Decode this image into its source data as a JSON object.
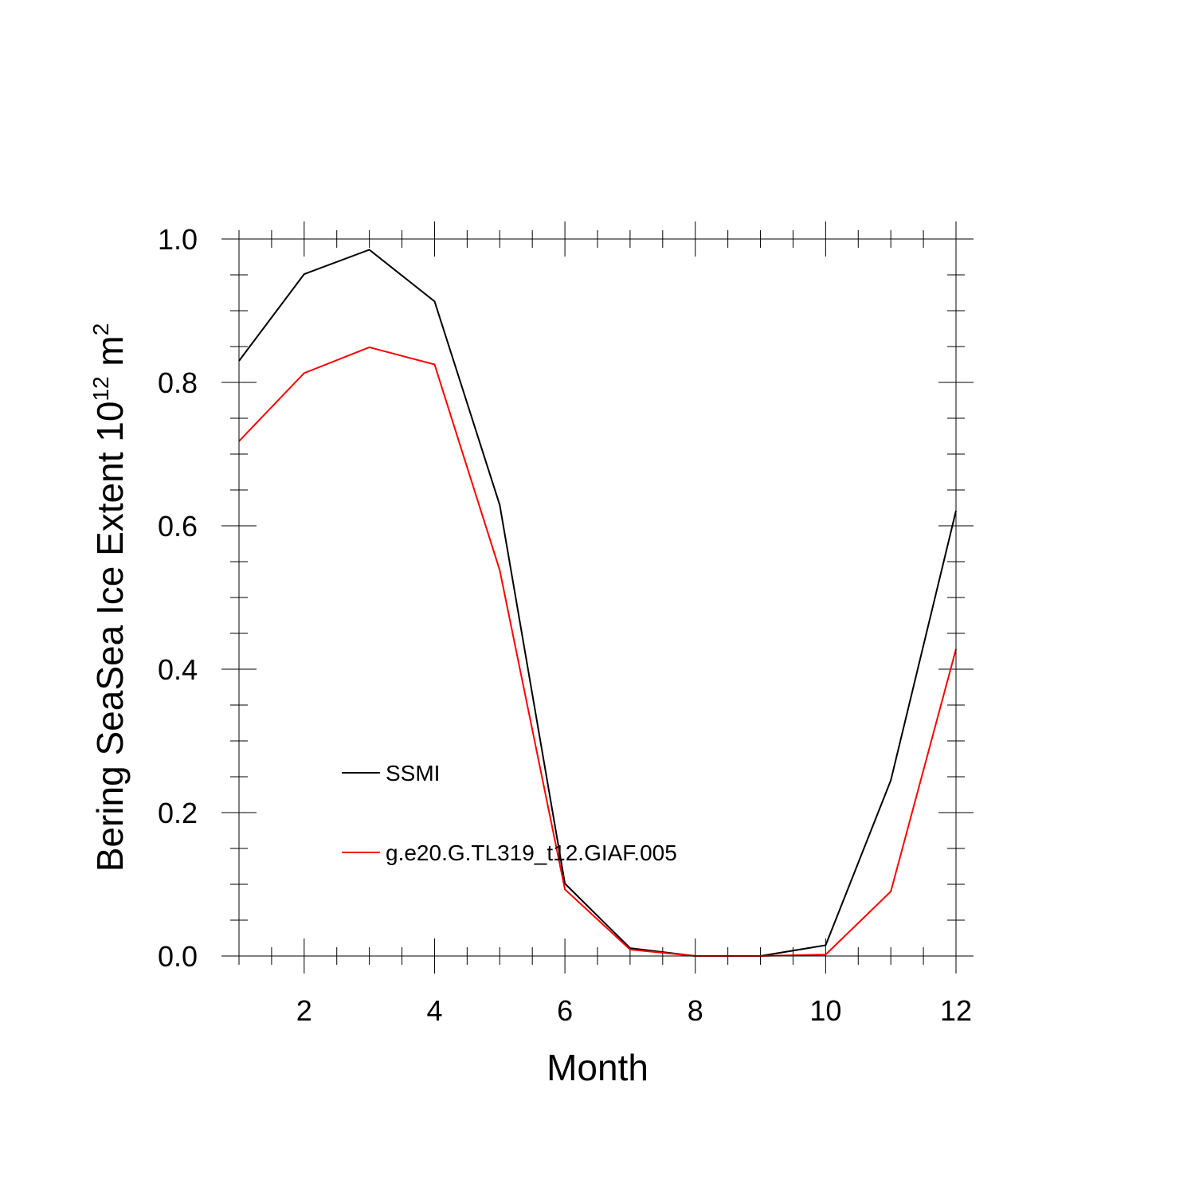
{
  "colors": {
    "background": "#ffffff",
    "axis": "#000000",
    "ssmi": "#000000",
    "model": "#ff0000"
  },
  "chart_data": {
    "type": "line",
    "title": "",
    "xlabel": "Month",
    "ylabel_text": "Bering SeaSea Ice Extent 10",
    "ylabel_exponent": "12",
    "ylabel_unit": " m",
    "ylabel_unit_exponent": "2",
    "xlim": [
      1,
      12
    ],
    "ylim": [
      0.0,
      1.0
    ],
    "x": [
      1,
      2,
      3,
      4,
      5,
      6,
      7,
      8,
      9,
      10,
      11,
      12
    ],
    "x_ticks": [
      2,
      4,
      6,
      8,
      10,
      12
    ],
    "x_tick_labels": [
      "2",
      "4",
      "6",
      "8",
      "10",
      "12"
    ],
    "y_ticks": [
      0.0,
      0.2,
      0.4,
      0.6,
      0.8,
      1.0
    ],
    "y_tick_labels": [
      "0.0",
      "0.2",
      "0.4",
      "0.6",
      "0.8",
      "1.0"
    ],
    "grid": false,
    "legend_position": "lower-left inside",
    "series": [
      {
        "name": "SSMI",
        "color": "#000000",
        "values": [
          0.83,
          0.951,
          0.985,
          0.913,
          0.629,
          0.101,
          0.011,
          0.0,
          0.0,
          0.015,
          0.245,
          0.621
        ]
      },
      {
        "name": "g.e20.G.TL319_t12.GIAF.005",
        "color": "#ff0000",
        "values": [
          0.718,
          0.813,
          0.849,
          0.825,
          0.538,
          0.093,
          0.009,
          0.0,
          0.0,
          0.002,
          0.09,
          0.428
        ]
      }
    ]
  }
}
